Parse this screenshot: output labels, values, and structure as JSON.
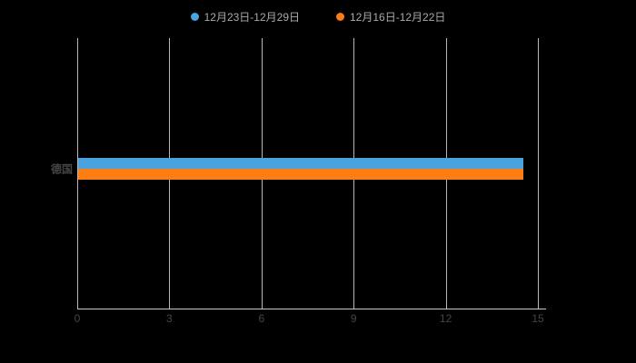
{
  "chart_data": {
    "type": "bar",
    "orientation": "horizontal",
    "title": "",
    "categories": [
      "德国"
    ],
    "series": [
      {
        "name": "12月23日-12月29日",
        "color": "#4ba3dd",
        "values": [
          14.5
        ]
      },
      {
        "name": "12月16日-12月22日",
        "color": "#fb7d14",
        "values": [
          14.5
        ]
      }
    ],
    "xlim": [
      0,
      15
    ],
    "xticks": [
      0,
      3,
      6,
      9,
      12,
      15
    ],
    "grid": true,
    "legend_position": "top",
    "background_color": "#000000",
    "gridline_color": "#cccccc",
    "tick_label_color": "#454545"
  }
}
